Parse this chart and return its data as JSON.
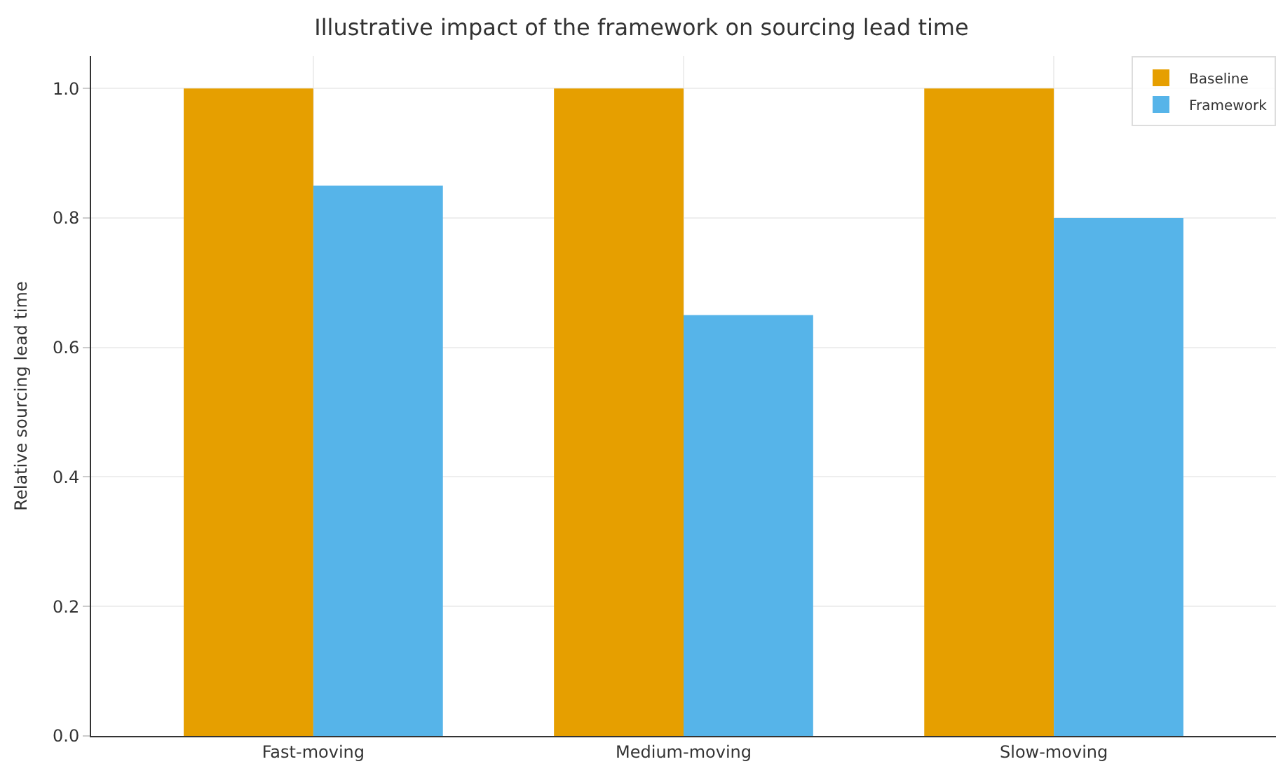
{
  "chart_data": {
    "type": "bar",
    "title": "Illustrative impact of the framework on sourcing lead time",
    "ylabel": "Relative sourcing lead time",
    "categories": [
      "Fast-moving",
      "Medium-moving",
      "Slow-moving"
    ],
    "series": [
      {
        "name": "Baseline",
        "color": "#e69f00",
        "values": [
          1.0,
          1.0,
          1.0
        ]
      },
      {
        "name": "Framework",
        "color": "#56b4e9",
        "values": [
          0.85,
          0.65,
          0.8
        ]
      }
    ],
    "ylim": [
      0,
      1.05
    ],
    "yticks": [
      {
        "value": 0,
        "label": "0.0"
      },
      0.2,
      0.4,
      0.6,
      0.8,
      {
        "value": 1,
        "label": "1.0"
      }
    ],
    "grid": true,
    "legend": "top right"
  }
}
